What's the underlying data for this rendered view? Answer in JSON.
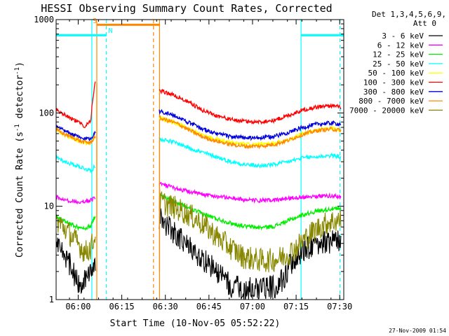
{
  "chart_data": {
    "type": "line",
    "title": "HESSI Observing Summary Count Rates, Corrected",
    "xlabel": "Start Time (10-Nov-05 05:52:22)",
    "ylabel_main": "Corrected Count Rate (s",
    "ylabel_sup1": "-1",
    "ylabel_mid": " detector",
    "ylabel_sup2": "-1",
    "ylabel_end": ")",
    "x_unit": "minutes after 05:52:22",
    "xlim": [
      0,
      99
    ],
    "ylim": [
      1,
      1000
    ],
    "yscale": "log",
    "x_ticks": [
      {
        "x": 7.6,
        "label": "06:00"
      },
      {
        "x": 22.6,
        "label": "06:15"
      },
      {
        "x": 37.6,
        "label": "06:30"
      },
      {
        "x": 52.6,
        "label": "06:45"
      },
      {
        "x": 67.6,
        "label": "07:00"
      },
      {
        "x": 82.6,
        "label": "07:15"
      },
      {
        "x": 97.6,
        "label": "07:30"
      }
    ],
    "y_ticks": [
      {
        "y": 1,
        "label": "1"
      },
      {
        "y": 10,
        "label": "10"
      },
      {
        "y": 100,
        "label": "100"
      },
      {
        "y": 1000,
        "label": "1000"
      }
    ],
    "legend": {
      "position": "right",
      "header1": "Det 1,3,4,5,6,9,",
      "header2": "Att 0"
    },
    "series": [
      {
        "name": "3 - 6 keV",
        "color": "#000000",
        "segments": [
          {
            "x": [
              0,
              2,
              4,
              6,
              8,
              10,
              12,
              13.5
            ],
            "y": [
              4.3,
              3.3,
              2.6,
              1.9,
              1.4,
              1.7,
              1.9,
              2.2
            ]
          },
          {
            "x": [
              35.5,
              38,
              41,
              44,
              47,
              50,
              53,
              56,
              60,
              64,
              68,
              72,
              76,
              78,
              80,
              83,
              86,
              90,
              94,
              98
            ],
            "y": [
              7.4,
              6.3,
              5.1,
              4.1,
              3.3,
              2.8,
              2.3,
              1.9,
              1.4,
              1.3,
              1.3,
              1.3,
              1.4,
              1.6,
              2.2,
              2.9,
              3.5,
              4.1,
              4.2,
              4.3
            ]
          }
        ]
      },
      {
        "name": "6 - 12 keV",
        "color": "#ff00ff",
        "segments": [
          {
            "x": [
              0,
              3,
              6,
              9,
              12,
              13.5
            ],
            "y": [
              12.5,
              11.8,
              11.3,
              11.2,
              11.6,
              12.5
            ]
          },
          {
            "x": [
              35.5,
              38,
              42,
              46,
              50,
              55,
              60,
              65,
              70,
              75,
              80,
              85,
              90,
              95,
              98
            ],
            "y": [
              17.5,
              16.5,
              15.3,
              14.3,
              13.5,
              12.8,
              12.3,
              11.7,
              11.5,
              11.6,
              12.2,
              12.6,
              12.9,
              12.9,
              12.6
            ]
          }
        ]
      },
      {
        "name": "12 - 25 keV",
        "color": "#00ee00",
        "segments": [
          {
            "x": [
              0,
              3,
              6,
              9,
              12,
              13.5
            ],
            "y": [
              7.8,
              6.9,
              6.2,
              5.7,
              6.2,
              8.0
            ]
          },
          {
            "x": [
              35.5,
              38,
              42,
              46,
              50,
              55,
              60,
              65,
              70,
              75,
              80,
              85,
              90,
              95,
              98
            ],
            "y": [
              13.3,
              12.2,
              10.8,
              9.4,
              8.4,
              7.4,
              6.6,
              6.1,
              5.9,
              6.1,
              7.0,
              8.1,
              8.9,
              9.4,
              9.3
            ]
          }
        ]
      },
      {
        "name": "25 - 50 keV",
        "color": "#00ffff",
        "segments": [
          {
            "x": [
              0,
              3,
              6,
              9,
              12,
              13.5
            ],
            "y": [
              34,
              30,
              28,
              26,
              24,
              27
            ]
          },
          {
            "x": [
              35.5,
              38,
              42,
              46,
              50,
              55,
              60,
              65,
              70,
              75,
              80,
              85,
              90,
              95,
              98
            ],
            "y": [
              53,
              51,
              47,
              42,
              38,
              34,
              30,
              28,
              27,
              28,
              30,
              33,
              34,
              35,
              34
            ]
          }
        ]
      },
      {
        "name": "50 - 100 keV",
        "color": "#ffff00",
        "segments": [
          {
            "x": [
              0,
              3,
              6,
              9,
              12,
              13.5
            ],
            "y": [
              65,
              58,
              53,
              48,
              47,
              56
            ]
          },
          {
            "x": [
              35.5,
              38,
              42,
              46,
              50,
              55,
              60,
              65,
              70,
              75,
              80,
              85,
              90,
              95,
              98
            ],
            "y": [
              88,
              84,
              76,
              66,
              58,
              52,
              48,
              46,
              46,
              47,
              52,
              60,
              66,
              68,
              67
            ]
          }
        ]
      },
      {
        "name": "100 - 300 keV",
        "color": "#ff0000",
        "segments": [
          {
            "x": [
              0,
              2,
              4,
              6,
              8,
              10,
              12,
              13.5
            ],
            "y": [
              108,
              100,
              92,
              85,
              78,
              72,
              85,
              215
            ]
          },
          {
            "x": [
              35.5,
              38,
              42,
              46,
              50,
              55,
              60,
              65,
              70,
              75,
              80,
              85,
              90,
              95,
              98
            ],
            "y": [
              172,
              165,
              148,
              128,
              108,
              94,
              85,
              81,
              80,
              83,
              94,
              108,
              116,
              120,
              115
            ]
          }
        ]
      },
      {
        "name": "300 - 800 keV",
        "color": "#0000dd",
        "segments": [
          {
            "x": [
              0,
              3,
              6,
              9,
              12,
              13.5
            ],
            "y": [
              71,
              64,
              58,
              53,
              53,
              63
            ]
          },
          {
            "x": [
              35.5,
              38,
              42,
              46,
              50,
              55,
              60,
              65,
              70,
              75,
              80,
              85,
              90,
              95,
              98
            ],
            "y": [
              104,
              100,
              90,
              78,
              68,
              60,
              56,
              54,
              54,
              56,
              62,
              70,
              76,
              78,
              76
            ]
          }
        ]
      },
      {
        "name": "800 - 7000 keV",
        "color": "#ff8800",
        "segments": [
          {
            "x": [
              0,
              3,
              6,
              9,
              12,
              13.5
            ],
            "y": [
              66,
              59,
              54,
              49,
              48,
              57
            ]
          },
          {
            "x": [
              35.5,
              38,
              42,
              46,
              50,
              55,
              60,
              65,
              70,
              75,
              80,
              85,
              90,
              95,
              98
            ],
            "y": [
              88,
              84,
              76,
              65,
              56,
              50,
              46,
              44,
              44,
              46,
              51,
              59,
              65,
              67,
              65
            ]
          }
        ]
      },
      {
        "name": "7000 - 20000 keV",
        "color": "#888800",
        "segments": [
          {
            "x": [
              0,
              2,
              4,
              6,
              8,
              10,
              12,
              13.5
            ],
            "y": [
              7.0,
              6.2,
              5.3,
              4.5,
              3.8,
              3.2,
              3.6,
              4.8
            ]
          },
          {
            "x": [
              35.5,
              38,
              42,
              46,
              50,
              53,
              56,
              60,
              64,
              68,
              72,
              76,
              80,
              83,
              86,
              90,
              94,
              98
            ],
            "y": [
              11.5,
              10.5,
              9.3,
              8.0,
              6.6,
              5.5,
              4.5,
              3.6,
              2.9,
              2.7,
              2.6,
              2.7,
              3.1,
              3.7,
              4.6,
              5.8,
              6.8,
              7.1
            ]
          }
        ]
      }
    ],
    "annotations": {
      "spikes": [
        {
          "x": 14,
          "y_from": 2,
          "y_to": 210
        },
        {
          "x": 35.6,
          "y_from": 2,
          "y_to": 55
        }
      ],
      "vlines": [
        {
          "x": 14,
          "color": "#ff8800",
          "style": "solid"
        },
        {
          "x": 35.6,
          "color": "#ff8800",
          "style": "solid"
        },
        {
          "x": 33.5,
          "color": "#ff8800",
          "style": "dashed"
        },
        {
          "x": 12.3,
          "color": "#00ffff",
          "style": "solid"
        },
        {
          "x": 17.3,
          "color": "#00ffff",
          "style": "dashed"
        },
        {
          "x": 84.3,
          "color": "#00ffff",
          "style": "solid"
        },
        {
          "x": 97.7,
          "color": "#00ffff",
          "style": "dashed"
        }
      ],
      "hbars": [
        {
          "x1": 0,
          "x2": 17.3,
          "y": 680,
          "color": "#00ffff"
        },
        {
          "x1": 84.3,
          "x2": 99,
          "y": 680,
          "color": "#00ffff"
        },
        {
          "x1": 14,
          "x2": 35.6,
          "y": 880,
          "color": "#ff8800"
        }
      ],
      "labels": [
        {
          "text": "S",
          "x": 12.6,
          "y": 920,
          "color": "#ff8800"
        },
        {
          "text": "N",
          "x": 18.0,
          "y": 720,
          "color": "#00ffff"
        }
      ]
    },
    "footer_timestamp": "27-Nov-2009 01:54"
  }
}
